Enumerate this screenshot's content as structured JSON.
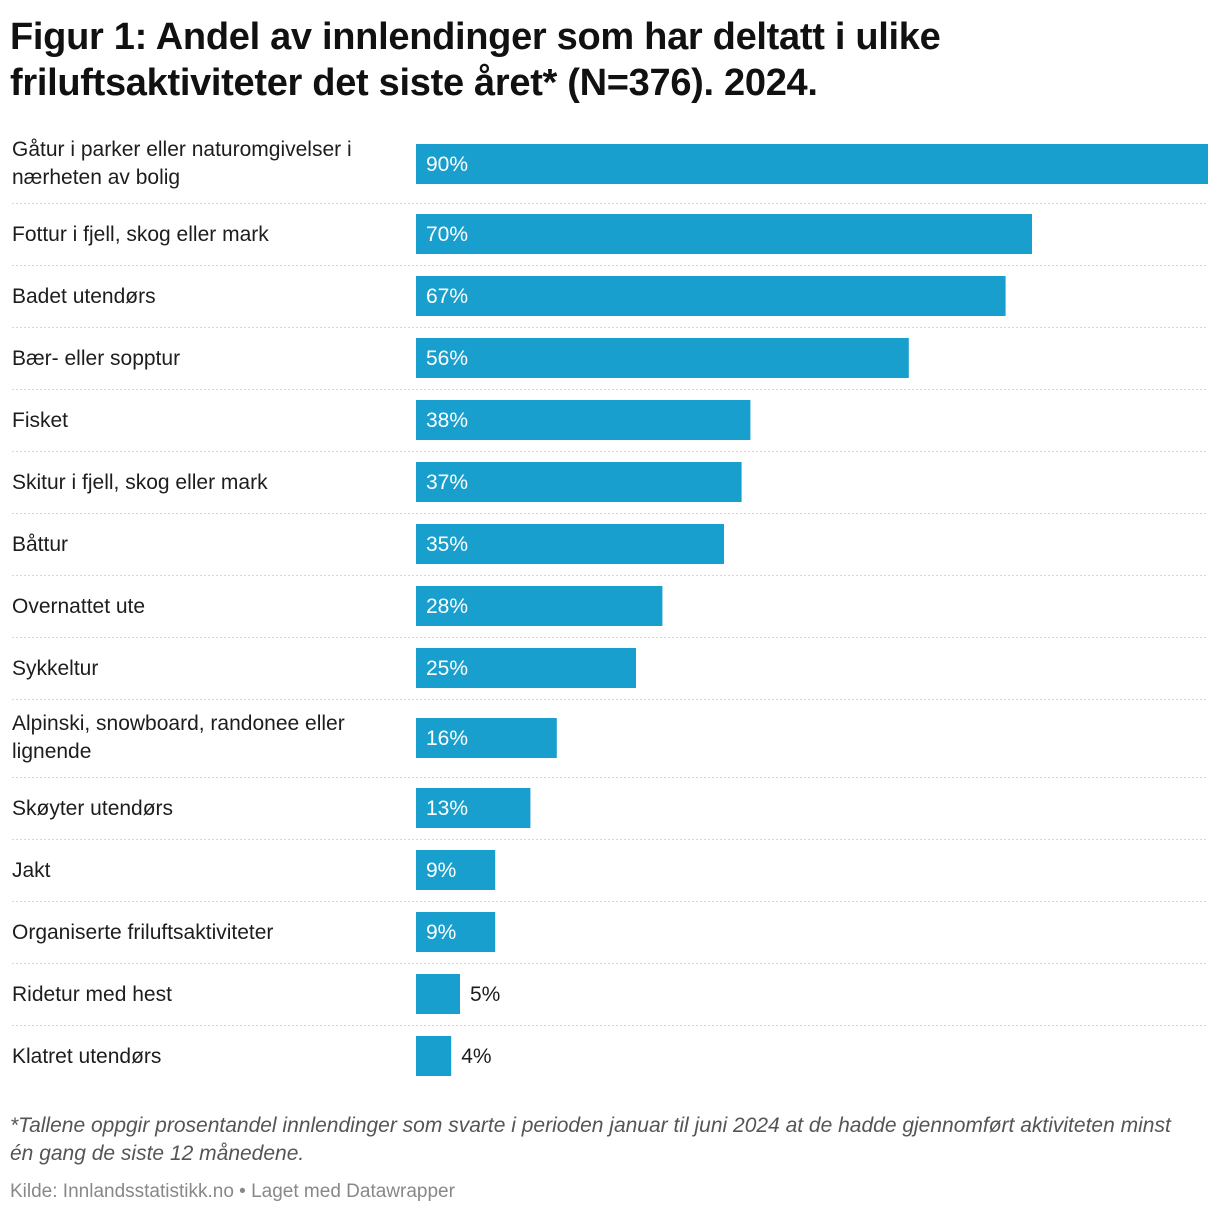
{
  "title": "Figur 1: Andel av innlendinger som har deltatt i ulike friluftsaktiviteter det siste året* (N=376). 2024.",
  "footnote": "*Tallene oppgir prosentandel innlendinger som svarte i perioden januar til juni 2024 at de hadde gjennomført aktiviteten minst én gang de siste 12 månedene.",
  "source": "Kilde: Innlandsstatistikk.no • Laget med Datawrapper",
  "colors": {
    "bar": "#199fcd",
    "separator": "#d6d6d6"
  },
  "chart_data": {
    "type": "bar",
    "orientation": "horizontal",
    "categories": [
      "Gåtur i parker eller naturomgivelser i nærheten av bolig",
      "Fottur i fjell, skog eller mark",
      "Badet utendørs",
      "Bær- eller sopptur",
      "Fisket",
      "Skitur i fjell, skog eller mark",
      "Båttur",
      "Overnattet ute",
      "Sykkeltur",
      "Alpinski, snowboard, randonee eller lignende",
      "Skøyter utendørs",
      "Jakt",
      "Organiserte friluftsaktiviteter",
      "Ridetur med hest",
      "Klatret utendørs"
    ],
    "values": [
      90,
      70,
      67,
      56,
      38,
      37,
      35,
      28,
      25,
      16,
      13,
      9,
      9,
      5,
      4
    ],
    "value_labels": [
      "90%",
      "70%",
      "67%",
      "56%",
      "38%",
      "37%",
      "35%",
      "28%",
      "25%",
      "16%",
      "13%",
      "9%",
      "9%",
      "5%",
      "4%"
    ],
    "xlim": [
      0,
      90
    ],
    "grid": false
  }
}
